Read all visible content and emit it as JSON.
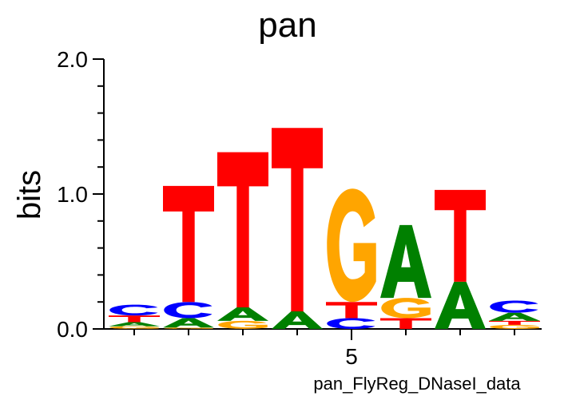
{
  "chart_data": {
    "type": "sequence-logo",
    "title": "pan",
    "ylabel": "bits",
    "xlabel": "pan_FlyReg_DNaseI_data",
    "ylim": [
      0,
      2.0
    ],
    "y_ticks": [
      {
        "value": 0.0,
        "label": "0.0"
      },
      {
        "value": 1.0,
        "label": "1.0"
      },
      {
        "value": 2.0,
        "label": "2.0"
      }
    ],
    "x_ticks": [
      {
        "position": 5,
        "label": "5"
      }
    ],
    "colors": {
      "A": "#008000",
      "C": "#0000ff",
      "G": "#ffa500",
      "T": "#ff0000"
    },
    "positions": [
      {
        "position": 1,
        "letters": [
          {
            "base": "G",
            "bits": 0.02
          },
          {
            "base": "A",
            "bits": 0.03
          },
          {
            "base": "T",
            "bits": 0.05
          },
          {
            "base": "C",
            "bits": 0.08
          }
        ]
      },
      {
        "position": 2,
        "letters": [
          {
            "base": "G",
            "bits": 0.01
          },
          {
            "base": "A",
            "bits": 0.07
          },
          {
            "base": "C",
            "bits": 0.12
          },
          {
            "base": "T",
            "bits": 0.86
          }
        ]
      },
      {
        "position": 3,
        "letters": [
          {
            "base": "G",
            "bits": 0.06
          },
          {
            "base": "A",
            "bits": 0.1
          },
          {
            "base": "T",
            "bits": 1.15
          }
        ]
      },
      {
        "position": 4,
        "letters": [
          {
            "base": "A",
            "bits": 0.13
          },
          {
            "base": "T",
            "bits": 1.36
          }
        ]
      },
      {
        "position": 5,
        "letters": [
          {
            "base": "C",
            "bits": 0.08
          },
          {
            "base": "T",
            "bits": 0.12
          },
          {
            "base": "G",
            "bits": 0.84
          }
        ]
      },
      {
        "position": 6,
        "letters": [
          {
            "base": "T",
            "bits": 0.08
          },
          {
            "base": "G",
            "bits": 0.15
          },
          {
            "base": "A",
            "bits": 0.54
          }
        ]
      },
      {
        "position": 7,
        "letters": [
          {
            "base": "A",
            "bits": 0.35
          },
          {
            "base": "T",
            "bits": 0.68
          }
        ]
      },
      {
        "position": 8,
        "letters": [
          {
            "base": "G",
            "bits": 0.03
          },
          {
            "base": "T",
            "bits": 0.03
          },
          {
            "base": "A",
            "bits": 0.06
          },
          {
            "base": "C",
            "bits": 0.09
          }
        ]
      }
    ]
  }
}
